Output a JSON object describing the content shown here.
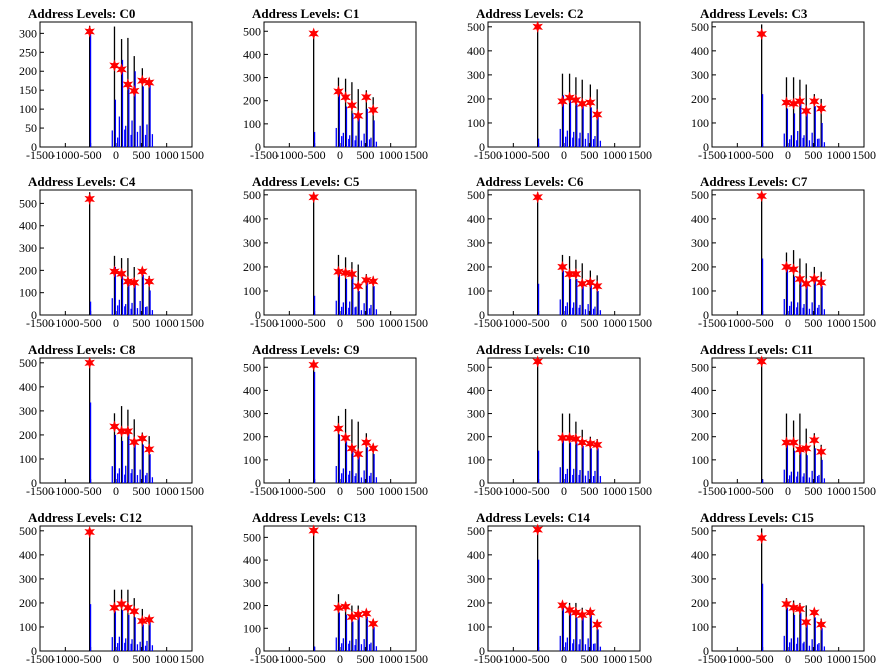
{
  "chart_data": {
    "type": "bar",
    "layout": "4x4 grid of histograms",
    "x_ticks": [
      -1500,
      -1000,
      -500,
      0,
      500,
      1000,
      1500
    ],
    "colors": {
      "tall_bars": "#000000",
      "inner_bars": "#0000ff",
      "peak_markers": "#ff0000"
    },
    "peak_marker_shape": "star",
    "charts": [
      {
        "title": "Address Levels: C0",
        "y_ticks": [
          0,
          50,
          100,
          150,
          200,
          250,
          300
        ],
        "ylim": [
          0,
          330
        ],
        "peaks_x": [
          -520,
          -30,
          110,
          235,
          360,
          520,
          655
        ],
        "tall_heights": [
          320,
          318,
          285,
          288,
          240,
          208,
          180
        ],
        "inner_heights": [
          310,
          125,
          230,
          160,
          200,
          160,
          170
        ],
        "stars": [
          305,
          215,
          205,
          165,
          148,
          175,
          170
        ]
      },
      {
        "title": "Address Levels: C1",
        "y_ticks": [
          0,
          100,
          200,
          300,
          400,
          500
        ],
        "ylim": [
          0,
          540
        ],
        "peaks_x": [
          -520,
          -30,
          110,
          235,
          360,
          520,
          655
        ],
        "tall_heights": [
          500,
          300,
          295,
          280,
          250,
          245,
          215
        ],
        "inner_heights": [
          65,
          235,
          175,
          145,
          140,
          165,
          115
        ],
        "stars": [
          490,
          240,
          215,
          180,
          135,
          215,
          160
        ]
      },
      {
        "title": "Address Levels: C2",
        "y_ticks": [
          0,
          100,
          200,
          300,
          400,
          500
        ],
        "ylim": [
          0,
          520
        ],
        "peaks_x": [
          -520,
          -30,
          110,
          235,
          360,
          520,
          655
        ],
        "tall_heights": [
          520,
          305,
          305,
          290,
          280,
          260,
          240
        ],
        "inner_heights": [
          35,
          215,
          195,
          180,
          170,
          165,
          130
        ],
        "stars": [
          500,
          190,
          205,
          195,
          180,
          185,
          135
        ]
      },
      {
        "title": "Address Levels: C3",
        "y_ticks": [
          0,
          100,
          200,
          300,
          400,
          500
        ],
        "ylim": [
          0,
          520
        ],
        "peaks_x": [
          -520,
          -30,
          110,
          235,
          360,
          520,
          655
        ],
        "tall_heights": [
          510,
          290,
          290,
          280,
          260,
          220,
          200
        ],
        "inner_heights": [
          220,
          160,
          140,
          190,
          140,
          170,
          100
        ],
        "stars": [
          470,
          185,
          180,
          190,
          150,
          190,
          160
        ]
      },
      {
        "title": "Address Levels: C4",
        "y_ticks": [
          0,
          100,
          200,
          300,
          400,
          500
        ],
        "ylim": [
          0,
          560
        ],
        "peaks_x": [
          -520,
          -30,
          110,
          235,
          360,
          520,
          655
        ],
        "tall_heights": [
          550,
          265,
          255,
          255,
          215,
          210,
          175
        ],
        "inner_heights": [
          60,
          215,
          195,
          140,
          155,
          180,
          110
        ],
        "stars": [
          520,
          195,
          185,
          150,
          145,
          195,
          150
        ]
      },
      {
        "title": "Address Levels: C5",
        "y_ticks": [
          0,
          100,
          200,
          300,
          400,
          500
        ],
        "ylim": [
          0,
          520
        ],
        "peaks_x": [
          -520,
          -30,
          110,
          235,
          360,
          520,
          655
        ],
        "tall_heights": [
          510,
          250,
          240,
          220,
          210,
          170,
          160
        ],
        "inner_heights": [
          80,
          170,
          150,
          160,
          100,
          140,
          120
        ],
        "stars": [
          490,
          180,
          175,
          170,
          120,
          145,
          140
        ]
      },
      {
        "title": "Address Levels: C6",
        "y_ticks": [
          0,
          100,
          200,
          300,
          400,
          500
        ],
        "ylim": [
          0,
          520
        ],
        "peaks_x": [
          -520,
          -30,
          110,
          235,
          360,
          520,
          655
        ],
        "tall_heights": [
          510,
          250,
          245,
          230,
          215,
          185,
          165
        ],
        "inner_heights": [
          130,
          185,
          150,
          150,
          120,
          130,
          100
        ],
        "stars": [
          490,
          200,
          170,
          170,
          130,
          135,
          120
        ]
      },
      {
        "title": "Address Levels: C7",
        "y_ticks": [
          0,
          100,
          200,
          300,
          400,
          500
        ],
        "ylim": [
          0,
          520
        ],
        "peaks_x": [
          -520,
          -30,
          110,
          235,
          360,
          520,
          655
        ],
        "tall_heights": [
          510,
          260,
          270,
          235,
          215,
          200,
          180
        ],
        "inner_heights": [
          235,
          190,
          160,
          150,
          130,
          150,
          120
        ],
        "stars": [
          495,
          200,
          190,
          150,
          130,
          150,
          135
        ]
      },
      {
        "title": "Address Levels: C8",
        "y_ticks": [
          0,
          100,
          200,
          300,
          400,
          500
        ],
        "ylim": [
          0,
          520
        ],
        "peaks_x": [
          -520,
          -30,
          110,
          235,
          360,
          520,
          655
        ],
        "tall_heights": [
          510,
          290,
          320,
          305,
          265,
          210,
          195
        ],
        "inner_heights": [
          335,
          200,
          175,
          205,
          165,
          160,
          120
        ],
        "stars": [
          500,
          235,
          215,
          215,
          170,
          185,
          140
        ]
      },
      {
        "title": "Address Levels: C9",
        "y_ticks": [
          0,
          100,
          200,
          300,
          400,
          500
        ],
        "ylim": [
          0,
          540
        ],
        "peaks_x": [
          -520,
          -30,
          110,
          235,
          360,
          520,
          655
        ],
        "tall_heights": [
          530,
          290,
          320,
          275,
          265,
          215,
          170
        ],
        "inner_heights": [
          480,
          210,
          180,
          150,
          120,
          155,
          125
        ],
        "stars": [
          510,
          235,
          195,
          150,
          125,
          175,
          150
        ]
      },
      {
        "title": "Address Levels: C10",
        "y_ticks": [
          0,
          100,
          200,
          300,
          400,
          500
        ],
        "ylim": [
          0,
          540
        ],
        "peaks_x": [
          -520,
          -30,
          110,
          235,
          360,
          520,
          655
        ],
        "tall_heights": [
          540,
          300,
          300,
          265,
          230,
          200,
          190
        ],
        "inner_heights": [
          140,
          195,
          175,
          175,
          160,
          150,
          150
        ],
        "stars": [
          525,
          195,
          195,
          190,
          175,
          170,
          165
        ]
      },
      {
        "title": "Address Levels: C11",
        "y_ticks": [
          0,
          100,
          200,
          300,
          400,
          500
        ],
        "ylim": [
          0,
          540
        ],
        "peaks_x": [
          -520,
          -30,
          110,
          235,
          360,
          520,
          655
        ],
        "tall_heights": [
          540,
          300,
          270,
          300,
          235,
          215,
          165
        ],
        "inner_heights": [
          15,
          165,
          140,
          140,
          120,
          150,
          100
        ],
        "stars": [
          525,
          175,
          175,
          145,
          150,
          185,
          135
        ]
      },
      {
        "title": "Address Levels: C12",
        "y_ticks": [
          0,
          100,
          200,
          300,
          400,
          500
        ],
        "ylim": [
          0,
          520
        ],
        "peaks_x": [
          -520,
          -30,
          110,
          235,
          360,
          520,
          655
        ],
        "tall_heights": [
          510,
          255,
          255,
          255,
          220,
          175,
          140
        ],
        "inner_heights": [
          195,
          165,
          170,
          150,
          140,
          110,
          120
        ],
        "stars": [
          495,
          180,
          195,
          180,
          165,
          125,
          130
        ]
      },
      {
        "title": "Address Levels: C13",
        "y_ticks": [
          0,
          100,
          200,
          300,
          400,
          500
        ],
        "ylim": [
          0,
          550
        ],
        "peaks_x": [
          -520,
          -30,
          110,
          235,
          360,
          520,
          655
        ],
        "tall_heights": [
          540,
          250,
          215,
          200,
          200,
          180,
          140
        ],
        "inner_heights": [
          20,
          170,
          160,
          130,
          150,
          150,
          105
        ],
        "stars": [
          530,
          190,
          195,
          150,
          160,
          165,
          120
        ]
      },
      {
        "title": "Address Levels: C14",
        "y_ticks": [
          0,
          100,
          200,
          300,
          400,
          500
        ],
        "ylim": [
          0,
          520
        ],
        "peaks_x": [
          -520,
          -30,
          110,
          235,
          360,
          520,
          655
        ],
        "tall_heights": [
          510,
          200,
          200,
          200,
          180,
          170,
          130
        ],
        "inner_heights": [
          380,
          180,
          160,
          140,
          140,
          150,
          90
        ],
        "stars": [
          505,
          190,
          170,
          160,
          150,
          160,
          110
        ]
      },
      {
        "title": "Address Levels: C15",
        "y_ticks": [
          0,
          100,
          200,
          300,
          400,
          500
        ],
        "ylim": [
          0,
          520
        ],
        "peaks_x": [
          -520,
          -30,
          110,
          235,
          360,
          520,
          655
        ],
        "tall_heights": [
          510,
          220,
          210,
          200,
          190,
          175,
          135
        ],
        "inner_heights": [
          280,
          180,
          150,
          160,
          110,
          140,
          95
        ],
        "stars": [
          470,
          195,
          180,
          175,
          120,
          160,
          110
        ]
      }
    ]
  }
}
